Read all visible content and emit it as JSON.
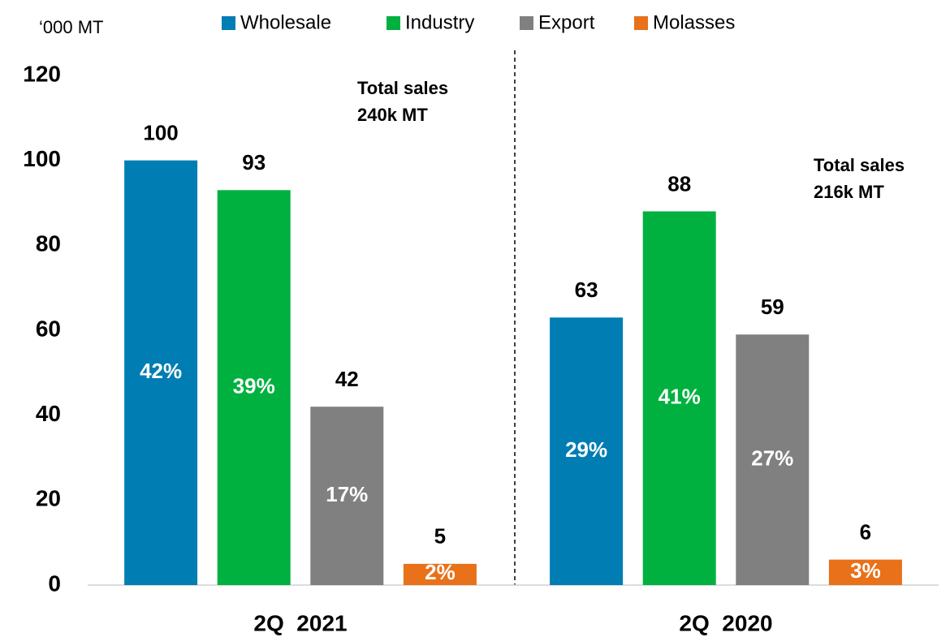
{
  "chart_data": {
    "type": "bar",
    "unit_label": "‘000 MT",
    "categories": [
      "2Q  2021",
      "2Q  2020"
    ],
    "series": [
      {
        "name": "Wholesale",
        "color": "#007db3",
        "values": [
          100,
          63
        ],
        "share_labels": [
          "42%",
          "29%"
        ]
      },
      {
        "name": "Industry",
        "color": "#00b140",
        "values": [
          93,
          88
        ],
        "share_labels": [
          "39%",
          "41%"
        ]
      },
      {
        "name": "Export",
        "color": "#808080",
        "values": [
          42,
          59
        ],
        "share_labels": [
          "17%",
          "27%"
        ]
      },
      {
        "name": "Molasses",
        "color": "#e8711a",
        "values": [
          5,
          6
        ],
        "share_labels": [
          "2%",
          "3%"
        ]
      }
    ],
    "annotations": [
      [
        "Total sales",
        "240k MT"
      ],
      [
        "Total sales",
        "216k MT"
      ]
    ],
    "ylim": [
      0,
      120
    ],
    "yticks": [
      0,
      20,
      40,
      60,
      80,
      100,
      120
    ],
    "grid": false
  }
}
